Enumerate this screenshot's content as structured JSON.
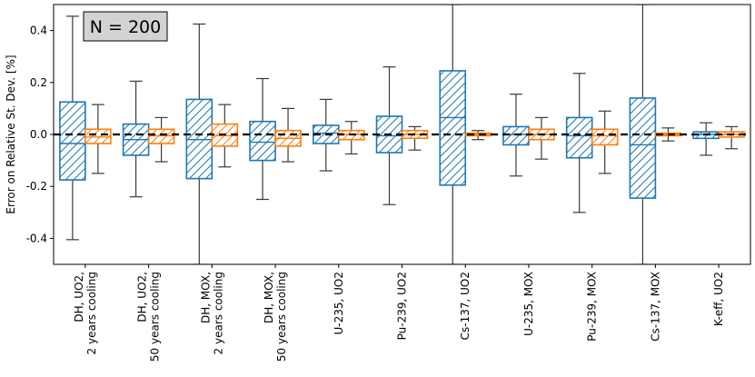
{
  "chart_data": {
    "type": "boxplot",
    "annotation": "N = 200",
    "xlabel": "",
    "ylabel": "Error on Relative St. Dev. [%]",
    "ylim": [
      -0.5,
      0.5
    ],
    "yticks": [
      -0.4,
      -0.2,
      0.0,
      0.2,
      0.4
    ],
    "ytick_labels": [
      "-0.4",
      "-0.2",
      "0.0",
      "0.2",
      "0.4"
    ],
    "reference_line": 0.0,
    "colors": {
      "series1": "#1f77b4",
      "series2": "#ff7f0e",
      "median": "#000000",
      "whisker": "#3a3a3a"
    },
    "categories": [
      {
        "label": [
          "DH, UO2,",
          "2 years cooling"
        ],
        "boxes": [
          {
            "series": "series1",
            "whislo": -0.405,
            "q1": -0.175,
            "med": -0.035,
            "q3": 0.125,
            "whishi": 0.455
          },
          {
            "series": "series2",
            "whislo": -0.15,
            "q1": -0.035,
            "med": -0.01,
            "q3": 0.02,
            "whishi": 0.115
          }
        ]
      },
      {
        "label": [
          "DH, UO2,",
          "50 years cooling"
        ],
        "boxes": [
          {
            "series": "series1",
            "whislo": -0.24,
            "q1": -0.08,
            "med": -0.02,
            "q3": 0.04,
            "whishi": 0.205
          },
          {
            "series": "series2",
            "whislo": -0.105,
            "q1": -0.035,
            "med": -0.005,
            "q3": 0.02,
            "whishi": 0.065
          }
        ]
      },
      {
        "label": [
          "DH, MOX,",
          "2 years cooling"
        ],
        "boxes": [
          {
            "series": "series1",
            "whislo": -0.5,
            "q1": -0.17,
            "med": -0.02,
            "q3": 0.135,
            "whishi": 0.425
          },
          {
            "series": "series2",
            "whislo": -0.125,
            "q1": -0.045,
            "med": -0.005,
            "q3": 0.04,
            "whishi": 0.115
          }
        ]
      },
      {
        "label": [
          "DH, MOX,",
          "50 years cooling"
        ],
        "boxes": [
          {
            "series": "series1",
            "whislo": -0.25,
            "q1": -0.1,
            "med": -0.03,
            "q3": 0.05,
            "whishi": 0.215
          },
          {
            "series": "series2",
            "whislo": -0.105,
            "q1": -0.045,
            "med": -0.015,
            "q3": 0.015,
            "whishi": 0.1
          }
        ]
      },
      {
        "label": [
          "U-235, UO2"
        ],
        "boxes": [
          {
            "series": "series1",
            "whislo": -0.14,
            "q1": -0.035,
            "med": 0.005,
            "q3": 0.035,
            "whishi": 0.135
          },
          {
            "series": "series2",
            "whislo": -0.075,
            "q1": -0.02,
            "med": 0.0,
            "q3": 0.015,
            "whishi": 0.05
          }
        ]
      },
      {
        "label": [
          "Pu-239, UO2"
        ],
        "boxes": [
          {
            "series": "series1",
            "whislo": -0.27,
            "q1": -0.07,
            "med": -0.005,
            "q3": 0.07,
            "whishi": 0.26
          },
          {
            "series": "series2",
            "whislo": -0.06,
            "q1": -0.015,
            "med": 0.0,
            "q3": 0.015,
            "whishi": 0.03
          }
        ]
      },
      {
        "label": [
          "Cs-137, UO2"
        ],
        "boxes": [
          {
            "series": "series1",
            "whislo": -0.5,
            "q1": -0.195,
            "med": 0.065,
            "q3": 0.245,
            "whishi": 0.5
          },
          {
            "series": "series2",
            "whislo": -0.02,
            "q1": -0.005,
            "med": 0.0,
            "q3": 0.005,
            "whishi": 0.015
          }
        ]
      },
      {
        "label": [
          "U-235, MOX"
        ],
        "boxes": [
          {
            "series": "series1",
            "whislo": -0.16,
            "q1": -0.04,
            "med": 0.0,
            "q3": 0.03,
            "whishi": 0.155
          },
          {
            "series": "series2",
            "whislo": -0.095,
            "q1": -0.02,
            "med": 0.0,
            "q3": 0.02,
            "whishi": 0.065
          }
        ]
      },
      {
        "label": [
          "Pu-239, MOX"
        ],
        "boxes": [
          {
            "series": "series1",
            "whislo": -0.3,
            "q1": -0.09,
            "med": -0.005,
            "q3": 0.065,
            "whishi": 0.235
          },
          {
            "series": "series2",
            "whislo": -0.15,
            "q1": -0.04,
            "med": -0.005,
            "q3": 0.02,
            "whishi": 0.09
          }
        ]
      },
      {
        "label": [
          "Cs-137, MOX"
        ],
        "boxes": [
          {
            "series": "series1",
            "whislo": -0.5,
            "q1": -0.245,
            "med": -0.04,
            "q3": 0.14,
            "whishi": 0.5
          },
          {
            "series": "series2",
            "whislo": -0.025,
            "q1": -0.005,
            "med": 0.0,
            "q3": 0.005,
            "whishi": 0.025
          }
        ]
      },
      {
        "label": [
          "K-eff, UO2"
        ],
        "boxes": [
          {
            "series": "series1",
            "whislo": -0.08,
            "q1": -0.015,
            "med": 0.0,
            "q3": 0.01,
            "whishi": 0.045
          },
          {
            "series": "series2",
            "whislo": -0.055,
            "q1": -0.01,
            "med": 0.0,
            "q3": 0.01,
            "whishi": 0.03
          }
        ]
      }
    ]
  }
}
